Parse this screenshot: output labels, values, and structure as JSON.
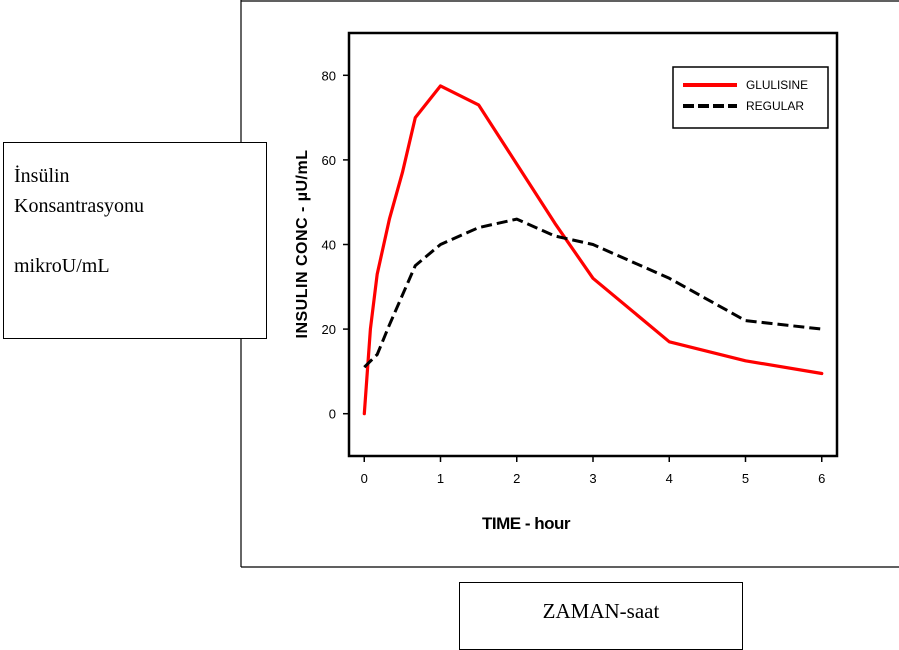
{
  "chart_data": {
    "type": "line",
    "xlabel": "TIME - hour",
    "ylabel": "INSULIN CONC - µU/mL",
    "xlim": [
      -0.2,
      6.2
    ],
    "ylim": [
      -10,
      90
    ],
    "x_ticks": [
      0,
      1,
      2,
      3,
      4,
      5,
      6
    ],
    "x_tick_labels": [
      "0",
      "1",
      "2",
      "3",
      "4",
      "5",
      "6"
    ],
    "y_ticks": [
      0,
      20,
      40,
      60,
      80
    ],
    "y_tick_labels": [
      "0",
      "20",
      "40",
      "60",
      "80"
    ],
    "grid": false,
    "legend": "top-right",
    "series": [
      {
        "name": "GLULISINE",
        "color": "#ff0000",
        "style": "solid",
        "x": [
          0,
          0.08,
          0.17,
          0.33,
          0.5,
          0.67,
          1.0,
          1.5,
          2.0,
          2.5,
          3.0,
          4.0,
          5.0,
          6.0
        ],
        "y": [
          0,
          20,
          33,
          46,
          57,
          70,
          77.5,
          73,
          59,
          45,
          32,
          17,
          12.5,
          9.5
        ]
      },
      {
        "name": "REGULAR",
        "color": "#000000",
        "style": "dashed",
        "x": [
          0,
          0.17,
          0.33,
          0.67,
          1.0,
          1.5,
          2.0,
          2.5,
          3.0,
          4.0,
          5.0,
          6.0
        ],
        "y": [
          11,
          14,
          21,
          35,
          40,
          44,
          46,
          42,
          40,
          32,
          22,
          20
        ]
      }
    ]
  },
  "annotations": {
    "y_callout": [
      "İnsülin",
      "Konsantrasyonu",
      "mikroU/mL"
    ],
    "x_callout": "ZAMAN-saat"
  }
}
